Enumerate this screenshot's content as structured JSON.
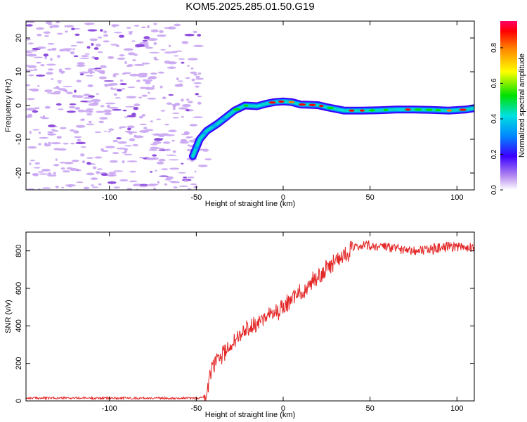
{
  "title": "KOM5.2025.285.01.50.G19",
  "colors": {
    "snr_line": "#e32626",
    "noise": "#c9a5f2",
    "noise_dark": "#7b2fd6"
  },
  "chart_data": [
    {
      "type": "heatmap",
      "name": "spectrogram",
      "xlabel": "Height of straight line (km)",
      "ylabel": "Frequency (Hz)",
      "xlim": [
        -148,
        110
      ],
      "ylim": [
        -25,
        25
      ],
      "xticks": [
        -100,
        -50,
        0,
        50,
        100
      ],
      "xtick_labels": [
        "-100",
        "-50",
        "0",
        "50",
        "100"
      ],
      "yticks": [
        -20,
        -10,
        0,
        10,
        20
      ],
      "ytick_labels": [
        "-20",
        "-10",
        "0",
        "10",
        "20"
      ],
      "ridge": [
        {
          "x": -52,
          "y": -15
        },
        {
          "x": -48,
          "y": -10
        },
        {
          "x": -44,
          "y": -7.5
        },
        {
          "x": -38,
          "y": -5.5
        },
        {
          "x": -33,
          "y": -3.5
        },
        {
          "x": -28,
          "y": -1.5
        },
        {
          "x": -22,
          "y": 0
        },
        {
          "x": -15,
          "y": -0.2
        },
        {
          "x": -10,
          "y": 0.5
        },
        {
          "x": -5,
          "y": 1.0
        },
        {
          "x": 0,
          "y": 1.2
        },
        {
          "x": 5,
          "y": 1.0
        },
        {
          "x": 10,
          "y": 0.3
        },
        {
          "x": 15,
          "y": 0.2
        },
        {
          "x": 20,
          "y": 0.1
        },
        {
          "x": 25,
          "y": -0.5
        },
        {
          "x": 35,
          "y": -1.5
        },
        {
          "x": 45,
          "y": -1.5
        },
        {
          "x": 55,
          "y": -1.4
        },
        {
          "x": 65,
          "y": -1.2
        },
        {
          "x": 75,
          "y": -1.2
        },
        {
          "x": 85,
          "y": -1.3
        },
        {
          "x": 95,
          "y": -1.5
        },
        {
          "x": 105,
          "y": -1.2
        },
        {
          "x": 110,
          "y": -0.8
        }
      ],
      "colorbar": {
        "label": "Normalized spectral amplitude",
        "range": [
          0,
          0.95
        ],
        "ticks": [
          0,
          0.2,
          0.4,
          0.6,
          0.8
        ],
        "tick_labels": [
          "0.0",
          "0.2",
          "0.4",
          "0.6",
          "0.8"
        ]
      }
    },
    {
      "type": "line",
      "name": "snr",
      "xlabel": "Height of straight line (km)",
      "ylabel": "SNR (v/v)",
      "xlim": [
        -148,
        110
      ],
      "ylim": [
        0,
        900
      ],
      "xticks": [
        -100,
        -50,
        0,
        50,
        100
      ],
      "xtick_labels": [
        "-100",
        "-50",
        "0",
        "50",
        "100"
      ],
      "yticks": [
        0,
        200,
        400,
        600,
        800
      ],
      "ytick_labels": [
        "0",
        "200",
        "400",
        "600",
        "800"
      ],
      "trend": [
        {
          "x": -148,
          "y": 15
        },
        {
          "x": -48,
          "y": 15
        },
        {
          "x": -44,
          "y": 30
        },
        {
          "x": -42,
          "y": 140
        },
        {
          "x": -40,
          "y": 200
        },
        {
          "x": -35,
          "y": 250
        },
        {
          "x": -30,
          "y": 300
        },
        {
          "x": -25,
          "y": 350
        },
        {
          "x": -20,
          "y": 390
        },
        {
          "x": -15,
          "y": 420
        },
        {
          "x": -10,
          "y": 440
        },
        {
          "x": -5,
          "y": 470
        },
        {
          "x": 0,
          "y": 500
        },
        {
          "x": 5,
          "y": 540
        },
        {
          "x": 10,
          "y": 580
        },
        {
          "x": 15,
          "y": 620
        },
        {
          "x": 20,
          "y": 660
        },
        {
          "x": 25,
          "y": 700
        },
        {
          "x": 30,
          "y": 750
        },
        {
          "x": 35,
          "y": 780
        },
        {
          "x": 40,
          "y": 810
        },
        {
          "x": 50,
          "y": 830
        },
        {
          "x": 60,
          "y": 815
        },
        {
          "x": 70,
          "y": 810
        },
        {
          "x": 80,
          "y": 800
        },
        {
          "x": 90,
          "y": 815
        },
        {
          "x": 100,
          "y": 825
        },
        {
          "x": 110,
          "y": 820
        }
      ]
    }
  ]
}
